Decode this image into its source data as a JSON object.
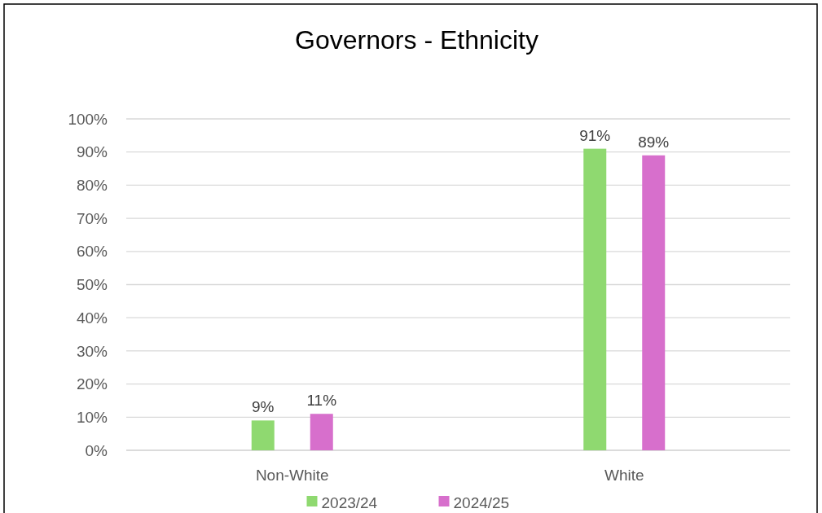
{
  "chart_data": {
    "type": "bar",
    "title": "Governors - Ethnicity",
    "categories": [
      "Non-White",
      "White"
    ],
    "series": [
      {
        "name": "2023/24",
        "color": "#8fd970",
        "values": [
          9,
          91
        ],
        "value_labels": [
          "9%",
          "91%"
        ]
      },
      {
        "name": "2024/25",
        "color": "#d76fcc",
        "values": [
          11,
          89
        ],
        "value_labels": [
          "11%",
          "89%"
        ]
      }
    ],
    "ylim": [
      0,
      100
    ],
    "yticks": [
      {
        "value": 0,
        "label": "0%"
      },
      {
        "value": 10,
        "label": "10%"
      },
      {
        "value": 20,
        "label": "20%"
      },
      {
        "value": 30,
        "label": "30%"
      },
      {
        "value": 40,
        "label": "40%"
      },
      {
        "value": 50,
        "label": "50%"
      },
      {
        "value": 60,
        "label": "60%"
      },
      {
        "value": 70,
        "label": "70%"
      },
      {
        "value": 80,
        "label": "80%"
      },
      {
        "value": 90,
        "label": "90%"
      },
      {
        "value": 100,
        "label": "100%"
      }
    ],
    "grid": "y",
    "legend": "bottom"
  }
}
